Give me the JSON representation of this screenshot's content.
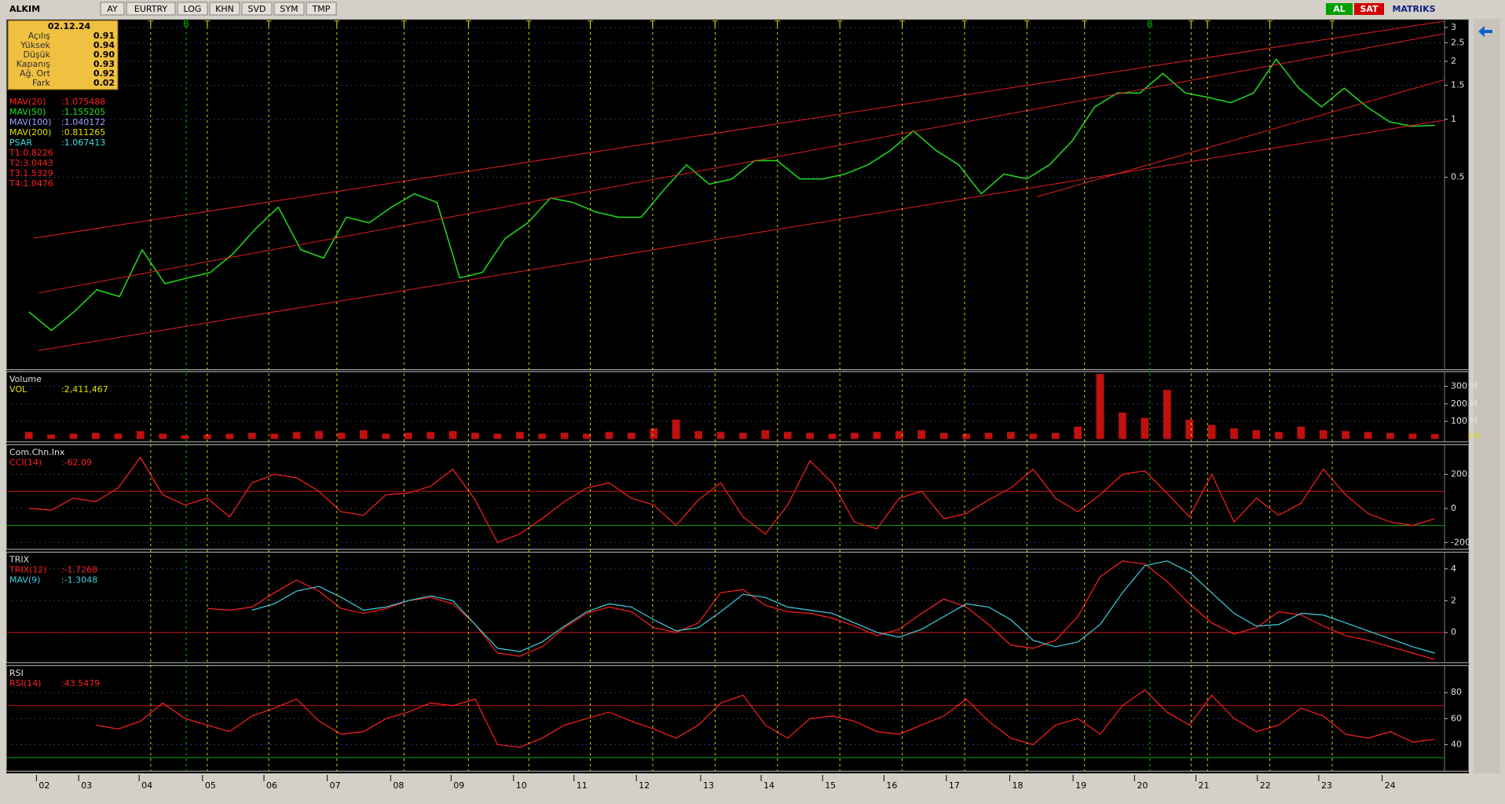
{
  "toolbar": {
    "symbol": "ALKIM",
    "buttons": [
      "AY",
      "EURTRY",
      "LOG",
      "KHN",
      "SVD",
      "SYM",
      "TMP"
    ],
    "buy": "AL",
    "sell": "SAT",
    "brand": "MATRIKS"
  },
  "info_box": {
    "date": "02.12.24",
    "rows": [
      [
        "Açılış",
        "0.91"
      ],
      [
        "Yüksek",
        "0.94"
      ],
      [
        "Düşük",
        "0.90"
      ],
      [
        "Kapanış",
        "0.93"
      ],
      [
        "Ağ. Ort",
        "0.92"
      ],
      [
        "Fark",
        "0.02"
      ]
    ]
  },
  "signal_colors": {
    "T": "#d8d800",
    "B": "#00c000"
  },
  "signals": [
    "T",
    "B",
    "T",
    "T",
    "T",
    "T",
    "T",
    "T",
    "T",
    "T",
    "T",
    "T",
    "T",
    "T",
    "T",
    "T",
    "T",
    "B",
    "T",
    "T",
    "T",
    "T"
  ],
  "x_labels": [
    "02",
    "03",
    "04",
    "05",
    "06",
    "07",
    "08",
    "09",
    "10",
    "11",
    "12",
    "13",
    "14",
    "15",
    "16",
    "17",
    "18",
    "19",
    "20",
    "21",
    "22",
    "23",
    "24"
  ],
  "price_panel": {
    "legend": [
      {
        "name": "MAV(20)",
        "value": ":1.075488",
        "color": "#ff2020"
      },
      {
        "name": "MAV(50)",
        "value": ":1.155205",
        "color": "#20e020"
      },
      {
        "name": "MAV(100)",
        "value": ":1.040172",
        "color": "#a0a0ff"
      },
      {
        "name": "MAV(200)",
        "value": ":0.811265",
        "color": "#e0e000"
      },
      {
        "name": "PSAR",
        "value": ":1.067413",
        "color": "#40e0e0"
      },
      {
        "name": "T1:0.8226",
        "value": "",
        "color": "#ff2020"
      },
      {
        "name": "T2:3.0443",
        "value": "",
        "color": "#ff2020"
      },
      {
        "name": "T3:1.5329",
        "value": "",
        "color": "#ff2020"
      },
      {
        "name": "T4:1.0476",
        "value": "",
        "color": "#ff2020"
      }
    ],
    "log": true,
    "ylim": [
      0.05,
      3.25
    ],
    "yticks": [
      0.5,
      1,
      1.5,
      2,
      2.5,
      3
    ],
    "color": "#20d020",
    "values": [
      0.1,
      0.08,
      0.1,
      0.13,
      0.12,
      0.21,
      0.14,
      0.15,
      0.16,
      0.2,
      0.27,
      0.35,
      0.21,
      0.19,
      0.31,
      0.29,
      0.35,
      0.41,
      0.37,
      0.15,
      0.16,
      0.24,
      0.29,
      0.39,
      0.37,
      0.33,
      0.31,
      0.31,
      0.43,
      0.58,
      0.46,
      0.49,
      0.61,
      0.61,
      0.49,
      0.49,
      0.52,
      0.58,
      0.69,
      0.87,
      0.69,
      0.58,
      0.41,
      0.52,
      0.49,
      0.58,
      0.77,
      1.16,
      1.37,
      1.37,
      1.73,
      1.37,
      1.3,
      1.22,
      1.37,
      2.05,
      1.45,
      1.16,
      1.45,
      1.16,
      0.97,
      0.92,
      0.93
    ]
  },
  "volume_panel": {
    "title": "Volume",
    "legend": [
      {
        "name": "VOL",
        "value": ":2,411,467",
        "color": "#e0e000"
      }
    ],
    "scale_label": "Lin",
    "ylim": [
      -16,
      374
    ],
    "yticks": [
      {
        "value": 100,
        "label": "100 M"
      },
      {
        "value": 200,
        "label": "200 M"
      },
      {
        "value": 300,
        "label": "300 M"
      }
    ],
    "color": "#c01010",
    "values": [
      40,
      25,
      30,
      35,
      30,
      45,
      30,
      20,
      25,
      30,
      35,
      30,
      40,
      45,
      35,
      50,
      30,
      35,
      40,
      45,
      35,
      30,
      40,
      30,
      35,
      30,
      40,
      35,
      60,
      110,
      45,
      40,
      35,
      50,
      40,
      35,
      30,
      35,
      40,
      45,
      50,
      35,
      30,
      35,
      40,
      30,
      35,
      70,
      370,
      150,
      120,
      280,
      110,
      80,
      60,
      50,
      40,
      70,
      50,
      45,
      40,
      35,
      30,
      28
    ]
  },
  "cci_panel": {
    "title": "Com.Chn.Inx",
    "legend": [
      {
        "name": "CCI(14)",
        "value": ":-62.09",
        "color": "#ff2020"
      }
    ],
    "ylim": [
      -240,
      365
    ],
    "yticks": [
      {
        "value": 200,
        "label": "200."
      },
      0,
      {
        "value": -200,
        "label": "-200."
      }
    ],
    "levels": [
      {
        "value": 100,
        "color": "#c01010"
      },
      {
        "value": -100,
        "color": "#10a010"
      }
    ],
    "series": [
      {
        "color": "#ff2020",
        "values": [
          0,
          -10,
          60,
          40,
          120,
          300,
          80,
          20,
          60,
          -50,
          150,
          200,
          180,
          100,
          -20,
          -40,
          80,
          90,
          130,
          230,
          50,
          -200,
          -150,
          -60,
          40,
          120,
          150,
          60,
          20,
          -100,
          50,
          150,
          -50,
          -150,
          20,
          280,
          150,
          -80,
          -120,
          60,
          100,
          -60,
          -30,
          50,
          120,
          230,
          60,
          -20,
          80,
          200,
          220,
          90,
          -50,
          200,
          -80,
          60,
          -40,
          30,
          230,
          80,
          -30,
          -80,
          -100,
          -60
        ]
      }
    ]
  },
  "trix_panel": {
    "title": "TRIX",
    "legend": [
      {
        "name": "TRIX(12)",
        "value": ":-1.7268",
        "color": "#ff2020"
      },
      {
        "name": "MAV(9)",
        "value": ":-1.3048",
        "color": "#40d0e0"
      }
    ],
    "ylim": [
      -1.9,
      4.95
    ],
    "yticks": [
      4,
      2,
      0
    ],
    "levels": [
      {
        "value": 0,
        "color": "#c01010"
      }
    ],
    "series": [
      {
        "color": "#ff2020",
        "values": [
          null,
          null,
          null,
          null,
          null,
          null,
          null,
          null,
          1.5,
          1.4,
          1.6,
          2.5,
          3.3,
          2.6,
          1.5,
          1.2,
          1.5,
          2.0,
          2.2,
          1.8,
          0.5,
          -1.3,
          -1.5,
          -0.9,
          0.3,
          1.2,
          1.6,
          1.3,
          0.3,
          0,
          0.6,
          2.5,
          2.7,
          1.7,
          1.3,
          1.2,
          0.9,
          0.4,
          -0.2,
          0.2,
          1.2,
          2.1,
          1.6,
          0.5,
          -0.8,
          -1.0,
          -0.5,
          1.0,
          3.5,
          4.5,
          4.3,
          3.2,
          1.8,
          0.6,
          -0.1,
          0.3,
          1.3,
          1.1,
          0.4,
          -0.2,
          -0.5,
          -0.9,
          -1.3,
          -1.7
        ]
      },
      {
        "color": "#40d0e0",
        "values": [
          null,
          null,
          null,
          null,
          null,
          null,
          null,
          null,
          null,
          null,
          1.4,
          1.8,
          2.6,
          2.9,
          2.2,
          1.4,
          1.6,
          2.0,
          2.3,
          2.0,
          0.5,
          -1.0,
          -1.2,
          -0.6,
          0.4,
          1.3,
          1.8,
          1.6,
          0.8,
          0.1,
          0.3,
          1.3,
          2.4,
          2.2,
          1.6,
          1.4,
          1.2,
          0.6,
          0,
          -0.3,
          0.2,
          1.0,
          1.8,
          1.6,
          0.8,
          -0.5,
          -0.9,
          -0.6,
          0.5,
          2.5,
          4.2,
          4.5,
          3.8,
          2.5,
          1.2,
          0.4,
          0.5,
          1.2,
          1.1,
          0.6,
          0.1,
          -0.4,
          -0.9,
          -1.3
        ]
      }
    ]
  },
  "rsi_panel": {
    "title": "RSI",
    "legend": [
      {
        "name": "RSI(14)",
        "value": ":43.5479",
        "color": "#ff2020"
      }
    ],
    "ylim": [
      19.6,
      99.6
    ],
    "yticks": [
      80,
      60,
      40
    ],
    "levels": [
      {
        "value": 70,
        "color": "#c01010"
      },
      {
        "value": 30,
        "color": "#10a010"
      }
    ],
    "series": [
      {
        "color": "#ff2020",
        "values": [
          null,
          null,
          null,
          55,
          52,
          58,
          72,
          60,
          55,
          50,
          62,
          68,
          75,
          58,
          48,
          50,
          60,
          65,
          72,
          70,
          75,
          40,
          38,
          45,
          55,
          60,
          65,
          58,
          52,
          45,
          55,
          72,
          78,
          55,
          45,
          60,
          62,
          58,
          50,
          48,
          55,
          62,
          75,
          58,
          45,
          40,
          55,
          60,
          48,
          70,
          82,
          65,
          55,
          78,
          60,
          50,
          55,
          68,
          62,
          48,
          45,
          50,
          42,
          44
        ]
      }
    ]
  }
}
